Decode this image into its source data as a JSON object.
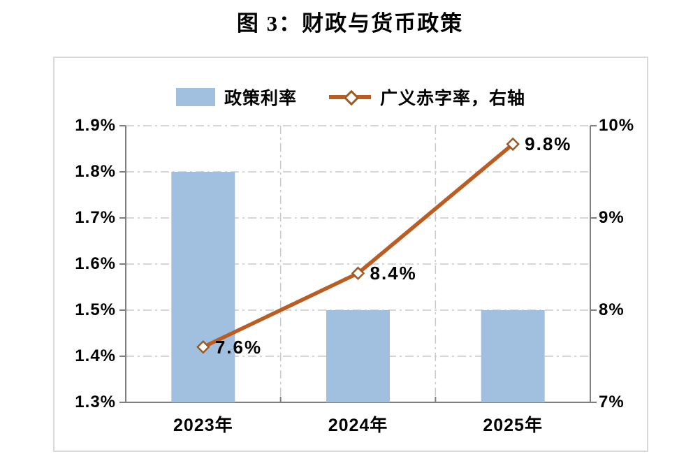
{
  "title": "图 3：财政与货币政策",
  "legend": [
    {
      "label": "政策利率",
      "swatch": "bar"
    },
    {
      "label": "广义赤字率，右轴",
      "swatch": "line"
    }
  ],
  "colors": {
    "bar_fill": "#A1C0DF",
    "line_stroke": "#BB5D22",
    "marker_stroke": "#9C5B24",
    "marker_fill": "#FFFFFF",
    "axis_spine": "#7F7F7F",
    "gridline": "#C9C9C9",
    "frame_border": "#D9D9D9",
    "text": "#000000"
  },
  "chart_data": {
    "type": "bar+line combo, dual axis",
    "title": "图 3：财政与货币政策",
    "categories": [
      "2023年",
      "2024年",
      "2025年"
    ],
    "series": [
      {
        "name": "政策利率",
        "type": "bar",
        "axis": "left",
        "values": [
          1.8,
          1.5,
          1.5
        ],
        "unit": "%"
      },
      {
        "name": "广义赤字率，右轴",
        "type": "line",
        "axis": "right",
        "values": [
          7.6,
          8.4,
          9.8
        ],
        "unit": "%",
        "point_labels": [
          "7.6%",
          "8.4%",
          "9.8%"
        ]
      }
    ],
    "left_axis": {
      "min": 1.3,
      "max": 1.9,
      "tick_values": [
        1.9,
        1.8,
        1.7,
        1.6,
        1.5,
        1.4,
        1.3
      ],
      "tick_labels": [
        "1.9%",
        "1.8%",
        "1.7%",
        "1.6%",
        "1.5%",
        "1.4%",
        "1.3%"
      ]
    },
    "right_axis": {
      "min": 7,
      "max": 10,
      "tick_values": [
        10,
        9,
        8,
        7
      ],
      "tick_labels": [
        "10%",
        "9%",
        "8%",
        "7%"
      ]
    },
    "grid": "dash-dot horizontal and vertical gridlines, boxed plot area",
    "legend_position": "top-center"
  }
}
